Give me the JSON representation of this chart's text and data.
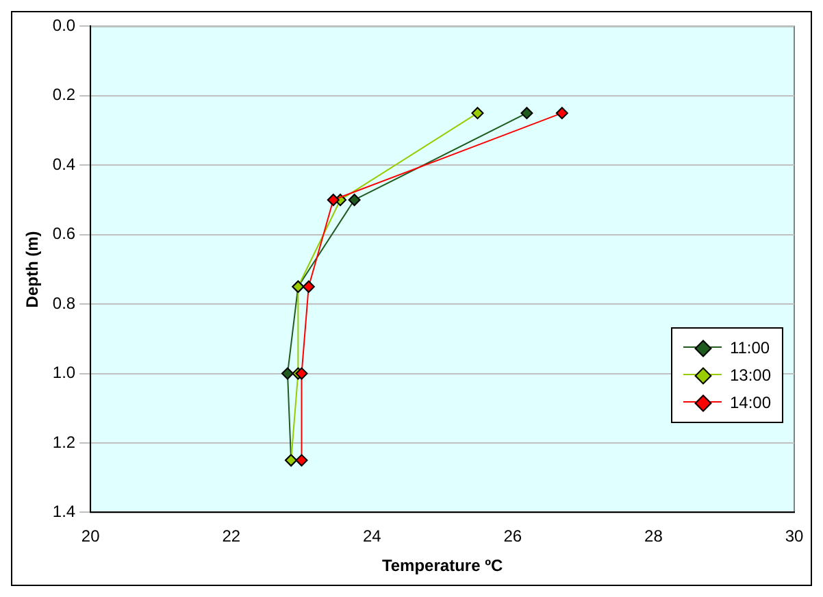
{
  "chart_data": {
    "type": "line",
    "xlabel": "Temperature ºC",
    "ylabel": "Depth (m)",
    "xlim": [
      20,
      30
    ],
    "xticks": [
      20,
      22,
      24,
      26,
      28,
      30
    ],
    "ylim": [
      1.4,
      0
    ],
    "yticks": [
      "0.0",
      0.2,
      0.4,
      0.6,
      0.8,
      "1.0",
      1.2,
      1.4
    ],
    "grid": "y",
    "legend": "right",
    "marker": "diamond",
    "line_style": "solid",
    "series": [
      {
        "name": "11:00",
        "color": "#1f5a1f",
        "x": [
          26.2,
          23.75,
          22.95,
          22.8,
          22.85
        ],
        "values": [
          0.25,
          0.5,
          0.75,
          1.0,
          1.25
        ]
      },
      {
        "name": "13:00",
        "color": "#99cc00",
        "x": [
          25.5,
          23.55,
          22.95,
          22.95,
          22.85
        ],
        "values": [
          0.25,
          0.5,
          0.75,
          1.0,
          1.25
        ]
      },
      {
        "name": "14:00",
        "color": "#ff0000",
        "x": [
          26.7,
          23.45,
          23.1,
          23.0,
          23.0
        ],
        "values": [
          0.25,
          0.5,
          0.75,
          1.0,
          1.25
        ]
      }
    ]
  }
}
